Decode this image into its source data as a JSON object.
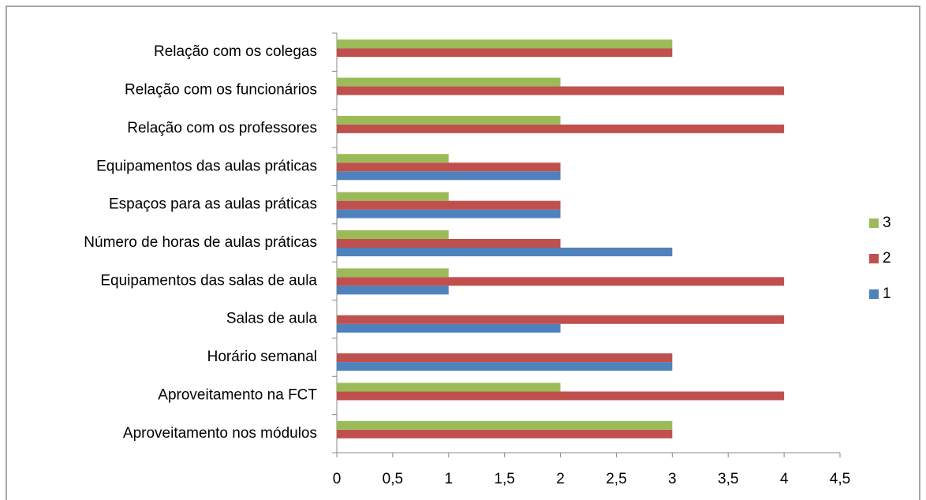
{
  "chart_data": {
    "type": "bar",
    "orientation": "horizontal",
    "categories": [
      "Aproveitamento nos módulos",
      "Aproveitamento na FCT",
      "Horário semanal",
      "Salas de aula",
      "Equipamentos das salas de aula",
      "Número de horas de aulas práticas",
      "Espaços para as aulas práticas",
      "Equipamentos das aulas práticas",
      "Relação com os professores",
      "Relação com os funcionários",
      "Relação com os colegas"
    ],
    "series": [
      {
        "name": "1",
        "color": "#4f81bd",
        "values": [
          0,
          0,
          3,
          2,
          1,
          3,
          2,
          2,
          0,
          0,
          0
        ]
      },
      {
        "name": "2",
        "color": "#c0504d",
        "values": [
          3,
          4,
          3,
          4,
          4,
          2,
          2,
          2,
          4,
          4,
          3
        ]
      },
      {
        "name": "3",
        "color": "#9bbb59",
        "values": [
          3,
          2,
          0,
          0,
          1,
          1,
          1,
          1,
          2,
          2,
          3
        ]
      }
    ],
    "xlim": [
      0,
      4.5
    ],
    "xticks": [
      0,
      {
        "value": 0.5,
        "label": "0,5"
      },
      1,
      {
        "value": 1.5,
        "label": "1,5"
      },
      2,
      {
        "value": 2.5,
        "label": "2,5"
      },
      3,
      {
        "value": 3.5,
        "label": "3,5"
      },
      4,
      {
        "value": 4.5,
        "label": "4,5"
      }
    ],
    "legend": "right"
  }
}
